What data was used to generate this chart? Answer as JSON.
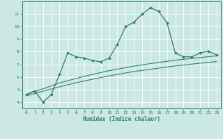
{
  "title": "",
  "xlabel": "Humidex (Indice chaleur)",
  "x": [
    0,
    1,
    2,
    3,
    4,
    5,
    6,
    7,
    8,
    9,
    10,
    11,
    12,
    13,
    14,
    15,
    16,
    17,
    18,
    19,
    20,
    21,
    22,
    23
  ],
  "y_main": [
    4.6,
    4.9,
    4.0,
    4.6,
    6.2,
    7.9,
    7.6,
    7.5,
    7.3,
    7.2,
    7.5,
    8.6,
    10.0,
    10.35,
    11.0,
    11.5,
    11.2,
    10.3,
    7.9,
    7.6,
    7.6,
    7.9,
    8.05,
    7.75
  ],
  "y_line1": [
    4.6,
    4.83,
    5.06,
    5.29,
    5.52,
    5.7,
    5.88,
    6.05,
    6.2,
    6.35,
    6.5,
    6.62,
    6.74,
    6.86,
    6.96,
    7.06,
    7.15,
    7.24,
    7.33,
    7.4,
    7.47,
    7.54,
    7.61,
    7.68
  ],
  "y_line2": [
    4.5,
    4.68,
    4.86,
    5.04,
    5.22,
    5.38,
    5.54,
    5.68,
    5.82,
    5.95,
    6.08,
    6.2,
    6.32,
    6.43,
    6.52,
    6.61,
    6.7,
    6.79,
    6.88,
    6.95,
    7.02,
    7.09,
    7.16,
    7.22
  ],
  "line_color": "#2d7d6e",
  "bg_color": "#cce8e4",
  "grid_color": "#ffffff",
  "ylim": [
    3.5,
    12.0
  ],
  "xlim": [
    -0.5,
    23.5
  ],
  "yticks": [
    4,
    5,
    6,
    7,
    8,
    9,
    10,
    11
  ],
  "xticks": [
    0,
    1,
    2,
    3,
    4,
    5,
    6,
    7,
    8,
    9,
    10,
    11,
    12,
    13,
    14,
    15,
    16,
    17,
    18,
    19,
    20,
    21,
    22,
    23
  ]
}
